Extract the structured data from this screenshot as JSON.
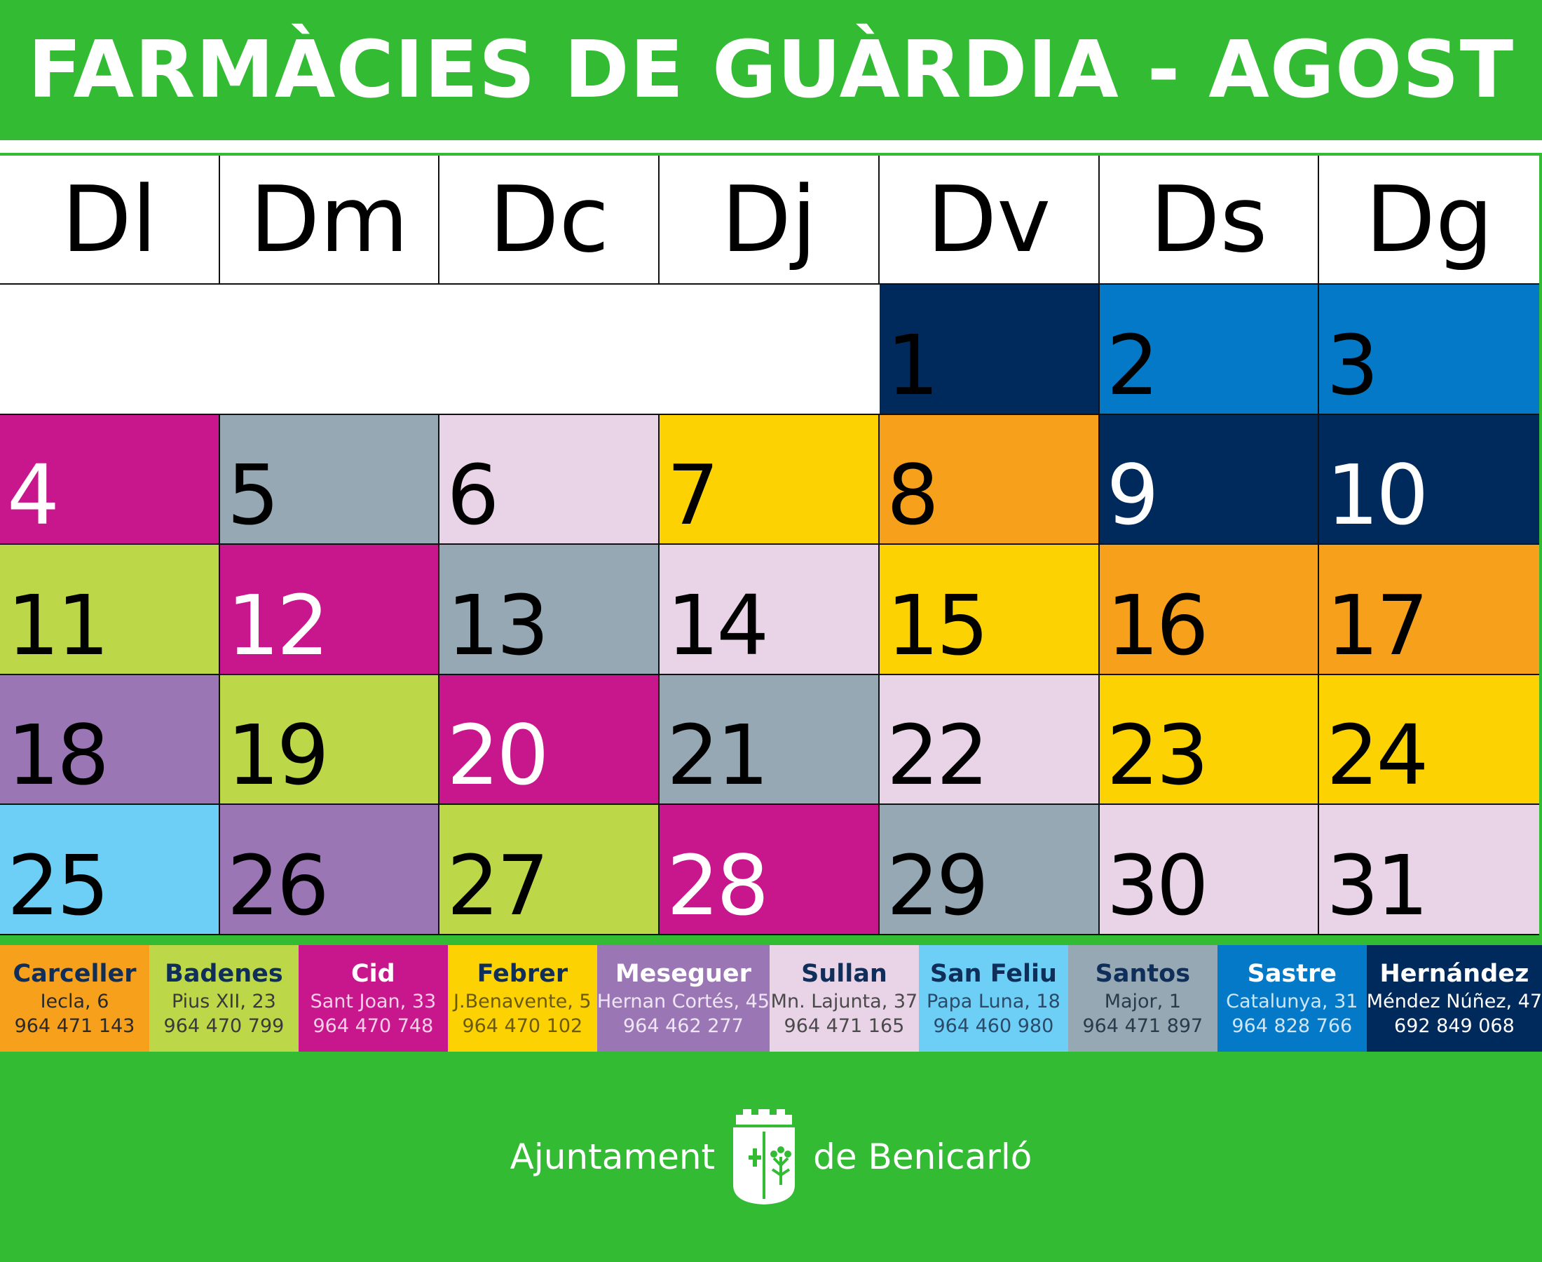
{
  "title": "FARMÀCIES DE GUÀRDIA - AGOST",
  "weekdays": [
    "Dl",
    "Dm",
    "Dc",
    "Dj",
    "Dv",
    "Ds",
    "Dg"
  ],
  "colors": {
    "Carceller": "#f6a01c",
    "Badenes": "#bcd748",
    "Cid": "#c8168c",
    "Febrer": "#fdd202",
    "Meseguer": "#9b76b4",
    "Sullan": "#e9d3e7",
    "San Feliu": "#6dcff5",
    "Santos": "#95a8b3",
    "Sastre": "#0379c7",
    "Hernández": "#00295c"
  },
  "days": [
    {
      "day": "1",
      "pharmacy": "Hernández"
    },
    {
      "day": "2",
      "pharmacy": "Sastre"
    },
    {
      "day": "3",
      "pharmacy": "Sastre"
    },
    {
      "day": "4",
      "pharmacy": "Cid"
    },
    {
      "day": "5",
      "pharmacy": "Santos"
    },
    {
      "day": "6",
      "pharmacy": "Sullan"
    },
    {
      "day": "7",
      "pharmacy": "Febrer"
    },
    {
      "day": "8",
      "pharmacy": "Carceller"
    },
    {
      "day": "9",
      "pharmacy": "Hernández"
    },
    {
      "day": "10",
      "pharmacy": "Hernández"
    },
    {
      "day": "11",
      "pharmacy": "Badenes"
    },
    {
      "day": "12",
      "pharmacy": "Cid"
    },
    {
      "day": "13",
      "pharmacy": "Santos"
    },
    {
      "day": "14",
      "pharmacy": "Sullan"
    },
    {
      "day": "15",
      "pharmacy": "Febrer"
    },
    {
      "day": "16",
      "pharmacy": "Carceller"
    },
    {
      "day": "17",
      "pharmacy": "Carceller"
    },
    {
      "day": "18",
      "pharmacy": "Meseguer"
    },
    {
      "day": "19",
      "pharmacy": "Badenes"
    },
    {
      "day": "20",
      "pharmacy": "Cid"
    },
    {
      "day": "21",
      "pharmacy": "Santos"
    },
    {
      "day": "22",
      "pharmacy": "Sullan"
    },
    {
      "day": "23",
      "pharmacy": "Febrer"
    },
    {
      "day": "24",
      "pharmacy": "Febrer"
    },
    {
      "day": "25",
      "pharmacy": "San Feliu"
    },
    {
      "day": "26",
      "pharmacy": "Meseguer"
    },
    {
      "day": "27",
      "pharmacy": "Badenes"
    },
    {
      "day": "28",
      "pharmacy": "Cid"
    },
    {
      "day": "29",
      "pharmacy": "Santos"
    },
    {
      "day": "30",
      "pharmacy": "Sullan"
    },
    {
      "day": "31",
      "pharmacy": "Sullan"
    }
  ],
  "pharmacies": [
    {
      "name": "Carceller",
      "address": "Iecla, 6",
      "phone": "964 471 143",
      "color": "#f6a01c",
      "name_color": "#0f2f5a",
      "text_color": "#2a2a2a"
    },
    {
      "name": "Badenes",
      "address": "Pius XII, 23",
      "phone": "964 470 799",
      "color": "#bcd748",
      "name_color": "#0f2f5a",
      "text_color": "#3a3a3a"
    },
    {
      "name": "Cid",
      "address": "Sant Joan, 33",
      "phone": "964 470 748",
      "color": "#c8168c",
      "name_color": "#ffffff",
      "text_color": "#f3d0e6"
    },
    {
      "name": "Febrer",
      "address": "J.Benavente, 5",
      "phone": "964 470 102",
      "color": "#fdd202",
      "name_color": "#0f2f5a",
      "text_color": "#6a5a10"
    },
    {
      "name": "Meseguer",
      "address": "Hernan Cortés, 45",
      "phone": "964 462 277",
      "color": "#9b76b4",
      "name_color": "#ffffff",
      "text_color": "#efe6f5"
    },
    {
      "name": "Sullan",
      "address": "Mn. Lajunta, 37",
      "phone": "964 471 165",
      "color": "#e9d3e7",
      "name_color": "#0f2f5a",
      "text_color": "#4a4a4a"
    },
    {
      "name": "San Feliu",
      "address": "Papa Luna, 18",
      "phone": "964 460 980",
      "color": "#6dcff5",
      "name_color": "#0f2f5a",
      "text_color": "#2a4a6a"
    },
    {
      "name": "Santos",
      "address": "Major, 1",
      "phone": "964 471 897",
      "color": "#95a8b3",
      "name_color": "#0f2f5a",
      "text_color": "#2a3a4a"
    },
    {
      "name": "Sastre",
      "address": "Catalunya, 31",
      "phone": "964 828 766",
      "color": "#0379c7",
      "name_color": "#ffffff",
      "text_color": "#cfe6f7"
    },
    {
      "name": "Hernández",
      "address": "Méndez Núñez, 47",
      "phone": "692 849 068",
      "color": "#00295c",
      "name_color": "#ffffff",
      "text_color": "#ffffff"
    }
  ],
  "footer": {
    "left_text": "Ajuntament",
    "right_text": "de Benicarló"
  }
}
